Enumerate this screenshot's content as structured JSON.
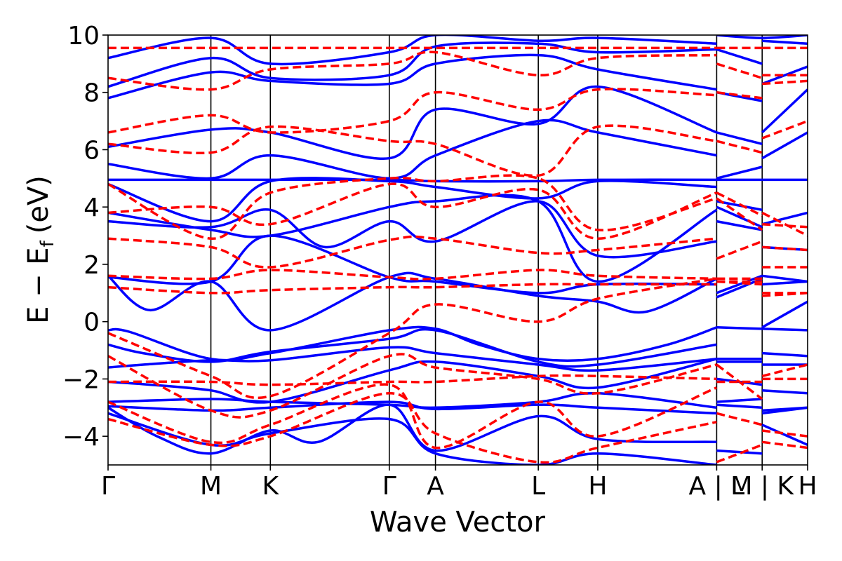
{
  "chart_data": {
    "type": "line",
    "title": "",
    "xlabel": "Wave Vector",
    "ylabel": "E − E",
    "ylabel_sub": "f",
    "ylabel_unit": "(eV)",
    "ylim": [
      -5,
      10
    ],
    "yticks": [
      -4,
      -2,
      0,
      2,
      4,
      6,
      8,
      10
    ],
    "ytick_labels": [
      "−4",
      "−2",
      "0",
      "2",
      "4",
      "6",
      "8",
      "10"
    ],
    "grid": false,
    "k_axis_range": [
      0,
      1
    ],
    "k_points": [
      {
        "label": "Γ",
        "x": 0.0
      },
      {
        "label": "M",
        "x": 0.147
      },
      {
        "label": "K",
        "x": 0.232
      },
      {
        "label": "Γ",
        "x": 0.402
      },
      {
        "label": "A",
        "x": 0.468
      },
      {
        "label": "L",
        "x": 0.615
      },
      {
        "label": "H",
        "x": 0.7
      },
      {
        "label": "A | L",
        "x": 0.87
      },
      {
        "label": "M | K",
        "x": 0.935
      },
      {
        "label": "H",
        "x": 1.0
      }
    ],
    "series_styles": [
      {
        "color": "#0000ff",
        "dash": "solid",
        "width": 3.5
      },
      {
        "color": "#ff0000",
        "dash": "dashed",
        "width": 3.5
      }
    ],
    "series": [
      {
        "style": 0,
        "x": [
          0,
          0.147,
          0.232,
          0.402,
          0.468,
          0.615,
          0.7,
          0.87,
          0.87,
          0.935,
          0.935,
          1.0
        ],
        "values": [
          4.95,
          4.95,
          4.95,
          4.95,
          4.9,
          4.9,
          4.95,
          4.95,
          4.95,
          4.95,
          4.95,
          4.95
        ]
      },
      {
        "style": 0,
        "x": [
          0,
          0.03,
          0.147,
          0.232,
          0.402,
          0.468,
          0.53,
          0.615,
          0.7,
          0.8,
          0.87,
          0.87,
          0.935,
          0.935,
          1.0
        ],
        "values": [
          -0.3,
          -0.35,
          -1.3,
          -1.1,
          -0.3,
          -0.25,
          -0.8,
          -1.3,
          -1.3,
          -0.8,
          -0.2,
          -0.2,
          -0.25,
          -0.25,
          -0.3
        ]
      },
      {
        "style": 0,
        "x": [
          0,
          0.05,
          0.147,
          0.232,
          0.402,
          0.468,
          0.615,
          0.7,
          0.87,
          0.87,
          0.935,
          0.935,
          1.0
        ],
        "values": [
          -0.8,
          -1.1,
          -1.4,
          -1.05,
          -0.6,
          -0.3,
          -1.4,
          -1.5,
          -0.8,
          -1.3,
          -1.3,
          -1.1,
          -1.2
        ]
      },
      {
        "style": 0,
        "x": [
          0,
          0.05,
          0.147,
          0.232,
          0.402,
          0.468,
          0.615,
          0.7,
          0.87,
          0.87,
          0.935,
          0.935,
          1.0
        ],
        "values": [
          -1.6,
          -1.5,
          -1.35,
          -1.35,
          -0.9,
          -1.1,
          -1.5,
          -1.7,
          -1.3,
          -1.4,
          -1.4,
          -1.5,
          -1.5
        ]
      },
      {
        "style": 0,
        "x": [
          0,
          0.06,
          0.147,
          0.232,
          0.402,
          0.468,
          0.615,
          0.7,
          0.87,
          0.87,
          0.935,
          0.935,
          1.0
        ],
        "values": [
          -2.1,
          -2.2,
          -2.4,
          -2.8,
          -1.7,
          -1.4,
          -1.9,
          -2.3,
          -1.3,
          -2.0,
          -2.2,
          -2.4,
          -2.5
        ]
      },
      {
        "style": 0,
        "x": [
          0,
          0.147,
          0.232,
          0.402,
          0.468,
          0.615,
          0.7,
          0.87,
          0.87,
          0.935,
          0.935,
          1.0
        ],
        "values": [
          -2.8,
          -2.7,
          -2.8,
          -2.9,
          -3.0,
          -2.8,
          -2.5,
          -3.0,
          -2.8,
          -2.7,
          -3.1,
          -3.0
        ]
      },
      {
        "style": 0,
        "x": [
          0,
          0.147,
          0.232,
          0.402,
          0.468,
          0.615,
          0.7,
          0.87,
          0.87,
          0.935,
          0.935,
          1.0
        ],
        "values": [
          -2.95,
          -3.1,
          -3.0,
          -2.8,
          -3.05,
          -2.9,
          -3.0,
          -3.2,
          -2.9,
          -3.0,
          -3.2,
          -3.0
        ]
      },
      {
        "style": 0,
        "x": [
          0,
          0.07,
          0.147,
          0.232,
          0.3,
          0.402,
          0.468,
          0.615,
          0.7,
          0.87,
          0.87,
          0.935,
          0.935,
          1.0
        ],
        "values": [
          -3.0,
          -4.0,
          -4.6,
          -3.8,
          -4.2,
          -2.9,
          -4.5,
          -3.3,
          -4.1,
          -4.2,
          -4.5,
          -4.6,
          -3.6,
          -4.3
        ]
      },
      {
        "style": 0,
        "x": [
          0,
          0.147,
          0.232,
          0.402,
          0.468,
          0.615,
          0.7,
          0.87
        ],
        "values": [
          -3.2,
          -4.3,
          -3.9,
          -3.4,
          -4.6,
          -5.0,
          -4.6,
          -5.0
        ]
      },
      {
        "style": 0,
        "x": [
          0,
          0.06,
          0.147,
          0.232,
          0.402,
          0.468,
          0.615,
          0.7,
          0.77,
          0.87,
          0.87,
          0.935,
          0.935,
          1.0
        ],
        "values": [
          1.6,
          0.4,
          1.4,
          -0.3,
          1.55,
          1.5,
          0.9,
          0.7,
          0.35,
          1.5,
          0.85,
          1.5,
          -0.2,
          0.7
        ]
      },
      {
        "style": 0,
        "x": [
          0,
          0.147,
          0.232,
          0.402,
          0.468,
          0.615,
          0.7,
          0.87,
          0.87,
          0.935,
          0.935,
          1.0
        ],
        "values": [
          1.55,
          1.4,
          3.0,
          1.55,
          1.4,
          1.0,
          1.3,
          1.3,
          1.0,
          1.6,
          1.3,
          1.4
        ]
      },
      {
        "style": 0,
        "x": [
          0,
          0.147,
          0.232,
          0.31,
          0.402,
          0.468,
          0.615,
          0.7,
          0.87,
          0.87,
          0.935,
          0.935,
          1.0
        ],
        "values": [
          3.5,
          3.3,
          3.9,
          2.6,
          3.5,
          2.8,
          4.2,
          2.3,
          2.8,
          3.5,
          3.2,
          1.6,
          1.4
        ]
      },
      {
        "style": 0,
        "x": [
          0,
          0.147,
          0.232,
          0.402,
          0.468,
          0.615,
          0.7,
          0.87,
          0.87,
          0.935,
          0.935,
          1.0
        ],
        "values": [
          3.8,
          3.2,
          3.0,
          4.0,
          4.2,
          4.2,
          1.4,
          3.9,
          4.0,
          3.3,
          2.6,
          2.5
        ]
      },
      {
        "style": 0,
        "x": [
          0,
          0.147,
          0.232,
          0.402,
          0.468,
          0.615,
          0.7,
          0.87,
          0.87,
          0.935,
          0.935,
          1.0
        ],
        "values": [
          4.8,
          3.5,
          4.9,
          4.9,
          4.7,
          4.3,
          4.9,
          4.7,
          4.2,
          3.9,
          3.4,
          3.8
        ]
      },
      {
        "style": 0,
        "x": [
          0,
          0.147,
          0.232,
          0.402,
          0.468,
          0.615,
          0.7,
          0.87,
          0.87,
          0.935,
          0.935,
          1.0
        ],
        "values": [
          5.5,
          5.0,
          5.8,
          5.0,
          5.8,
          7.0,
          6.6,
          5.8,
          5.0,
          5.4,
          5.7,
          6.6
        ]
      },
      {
        "style": 0,
        "x": [
          0,
          0.147,
          0.232,
          0.402,
          0.468,
          0.615,
          0.7,
          0.87,
          0.87,
          0.935,
          0.935,
          1.0
        ],
        "values": [
          6.1,
          6.7,
          6.6,
          5.7,
          7.4,
          6.9,
          8.2,
          6.6,
          6.6,
          6.2,
          6.6,
          8.1
        ]
      },
      {
        "style": 0,
        "x": [
          0,
          0.147,
          0.232,
          0.402,
          0.468,
          0.615,
          0.7,
          0.87,
          0.87,
          0.935,
          0.935,
          1.0
        ],
        "values": [
          7.8,
          8.7,
          8.4,
          8.3,
          9.0,
          9.3,
          8.8,
          8.1,
          8.0,
          7.7,
          8.3,
          8.9
        ]
      },
      {
        "style": 0,
        "x": [
          0,
          0.147,
          0.232,
          0.402,
          0.468,
          0.615,
          0.7,
          0.87,
          0.87,
          0.935,
          0.935,
          1.0
        ],
        "values": [
          8.2,
          9.2,
          8.5,
          8.6,
          9.6,
          9.7,
          9.4,
          9.5,
          9.5,
          9.0,
          9.8,
          9.7
        ]
      },
      {
        "style": 0,
        "x": [
          0,
          0.147,
          0.232,
          0.402,
          0.468,
          0.615,
          0.7,
          0.87,
          0.87,
          0.935,
          1.0
        ],
        "values": [
          9.2,
          9.9,
          9.0,
          9.4,
          10.0,
          9.8,
          9.9,
          9.7,
          10.0,
          9.9,
          10.0
        ]
      },
      {
        "style": 1,
        "x": [
          0,
          0.147,
          0.232,
          0.402,
          0.468,
          0.615,
          0.7,
          0.87,
          0.87,
          0.935,
          0.935,
          1.0
        ],
        "values": [
          9.55,
          9.55,
          9.55,
          9.55,
          9.55,
          9.55,
          9.55,
          9.55,
          9.55,
          9.55,
          9.55,
          9.55
        ]
      },
      {
        "style": 1,
        "x": [
          0,
          0.147,
          0.232,
          0.402,
          0.468,
          0.615,
          0.7,
          0.87,
          0.87,
          0.935,
          0.935,
          1.0
        ],
        "values": [
          -2.1,
          -2.1,
          -2.2,
          -2.1,
          -2.1,
          -1.9,
          -1.9,
          -2.0,
          -2.1,
          -2.1,
          -2.0,
          -2.0
        ]
      },
      {
        "style": 1,
        "x": [
          0,
          0.147,
          0.232,
          0.402,
          0.468,
          0.615,
          0.7,
          0.87,
          0.87,
          0.935,
          0.935,
          1.0
        ],
        "values": [
          1.2,
          1.0,
          1.1,
          1.2,
          1.2,
          1.3,
          1.3,
          1.3,
          1.4,
          1.4,
          1.0,
          1.0
        ]
      },
      {
        "style": 1,
        "x": [
          0,
          0.147,
          0.232,
          0.402,
          0.468,
          0.615,
          0.7,
          0.87,
          0.87,
          0.935,
          0.935,
          1.0
        ],
        "values": [
          1.6,
          1.5,
          1.8,
          1.55,
          1.5,
          1.8,
          1.6,
          1.5,
          1.5,
          1.5,
          1.9,
          1.9
        ]
      },
      {
        "style": 1,
        "x": [
          0,
          0.147,
          0.232,
          0.402,
          0.468,
          0.615,
          0.7,
          0.87,
          0.87,
          0.935,
          0.935,
          1.0
        ],
        "values": [
          2.9,
          2.6,
          1.9,
          2.85,
          2.9,
          2.4,
          2.5,
          2.9,
          2.2,
          2.8,
          2.6,
          2.5
        ]
      },
      {
        "style": 1,
        "x": [
          0,
          0.147,
          0.232,
          0.402,
          0.468,
          0.615,
          0.7,
          0.87,
          0.87,
          0.935,
          0.935,
          1.0
        ],
        "values": [
          3.8,
          4.0,
          3.4,
          4.8,
          4.0,
          4.6,
          2.9,
          4.5,
          4.5,
          3.7,
          3.8,
          3.0
        ]
      },
      {
        "style": 1,
        "x": [
          0,
          0.147,
          0.232,
          0.402,
          0.468,
          0.615,
          0.7,
          0.87,
          0.87,
          0.935,
          0.935,
          1.0
        ],
        "values": [
          4.8,
          2.9,
          4.5,
          5.0,
          4.9,
          5.0,
          3.2,
          4.3,
          4.3,
          3.2,
          3.4,
          3.3
        ]
      },
      {
        "style": 1,
        "x": [
          0,
          0.147,
          0.232,
          0.402,
          0.468,
          0.615,
          0.7,
          0.87,
          0.87,
          0.935,
          0.935,
          1.0
        ],
        "values": [
          6.2,
          5.9,
          6.8,
          6.3,
          6.2,
          5.1,
          6.8,
          6.3,
          6.3,
          5.9,
          6.4,
          7.0
        ]
      },
      {
        "style": 1,
        "x": [
          0,
          0.147,
          0.232,
          0.402,
          0.468,
          0.615,
          0.7,
          0.87,
          0.87,
          0.935,
          0.935,
          1.0
        ],
        "values": [
          6.6,
          7.2,
          6.6,
          7.0,
          8.0,
          7.4,
          8.1,
          7.9,
          8.0,
          7.8,
          8.3,
          8.4
        ]
      },
      {
        "style": 1,
        "x": [
          0,
          0.147,
          0.232,
          0.402,
          0.468,
          0.615,
          0.7,
          0.87,
          0.87,
          0.935,
          0.935,
          1.0
        ],
        "values": [
          8.5,
          8.1,
          8.8,
          9.0,
          9.4,
          8.6,
          9.2,
          9.3,
          9.0,
          8.5,
          8.6,
          8.6
        ]
      },
      {
        "style": 1,
        "x": [
          0,
          0.147,
          0.232,
          0.402,
          0.468,
          0.615,
          0.7,
          0.87,
          0.87,
          0.935,
          0.935,
          1.0
        ],
        "values": [
          -0.4,
          -1.9,
          -2.6,
          -0.4,
          0.6,
          0.0,
          0.8,
          1.5,
          1.4,
          1.3,
          0.9,
          1.0
        ]
      },
      {
        "style": 1,
        "x": [
          0,
          0.147,
          0.232,
          0.402,
          0.468,
          0.615,
          0.7,
          0.87,
          0.87,
          0.935,
          0.935,
          1.0
        ],
        "values": [
          -1.2,
          -3.1,
          -3.1,
          -1.2,
          -1.6,
          -2.0,
          -2.5,
          -1.5,
          -1.5,
          -2.7,
          -1.9,
          -1.5
        ]
      },
      {
        "style": 1,
        "x": [
          0,
          0.147,
          0.232,
          0.402,
          0.468,
          0.615,
          0.7,
          0.87,
          0.87,
          0.935,
          0.935,
          1.0
        ],
        "values": [
          -2.8,
          -4.2,
          -3.6,
          -2.2,
          -4.4,
          -2.8,
          -4.0,
          -2.3,
          -3.2,
          -3.6,
          -3.8,
          -4.0
        ]
      },
      {
        "style": 1,
        "x": [
          0,
          0.147,
          0.232,
          0.402,
          0.468,
          0.615,
          0.7,
          0.87,
          0.87,
          0.935,
          0.935,
          1.0
        ],
        "values": [
          -3.4,
          -4.3,
          -4.0,
          -2.5,
          -3.9,
          -4.9,
          -4.4,
          -3.5,
          -4.9,
          -4.3,
          -4.2,
          -4.4
        ]
      }
    ]
  }
}
